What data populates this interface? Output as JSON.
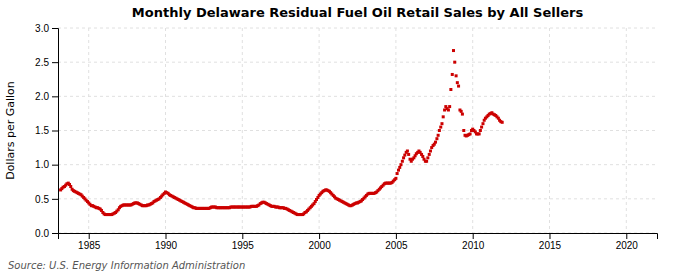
{
  "chart_data": {
    "type": "scatter",
    "title": "Monthly Delaware Residual Fuel Oil Retail Sales by All Sellers",
    "ylabel": "Dollars per Gallon",
    "source": "Source: U.S. Energy Information Administration",
    "color": "#cc0000",
    "marker": "square",
    "grid": true,
    "xlim": [
      1983.0,
      2022.0
    ],
    "ylim": [
      0.0,
      3.0
    ],
    "xticks": [
      1985,
      1990,
      1995,
      2000,
      2005,
      2010,
      2015,
      2020
    ],
    "yticks": [
      {
        "value": 0.0,
        "label": "0.0"
      },
      0.5,
      {
        "value": 1.0,
        "label": "1.0"
      },
      1.5,
      {
        "value": 2.0,
        "label": "2.0"
      },
      2.5,
      {
        "value": 3.0,
        "label": "3.0"
      }
    ],
    "x": [
      1983.17,
      1983.25,
      1983.33,
      1983.42,
      1983.5,
      1983.58,
      1983.67,
      1983.75,
      1983.83,
      1983.92,
      1984.0,
      1984.08,
      1984.17,
      1984.25,
      1984.33,
      1984.42,
      1984.5,
      1984.58,
      1984.67,
      1984.75,
      1984.83,
      1984.92,
      1985.0,
      1985.08,
      1985.17,
      1985.25,
      1985.33,
      1985.42,
      1985.5,
      1985.58,
      1985.67,
      1985.75,
      1985.83,
      1985.92,
      1986.0,
      1986.08,
      1986.17,
      1986.25,
      1986.33,
      1986.42,
      1986.5,
      1986.58,
      1986.67,
      1986.75,
      1986.83,
      1986.92,
      1987.0,
      1987.08,
      1987.17,
      1987.25,
      1987.33,
      1987.42,
      1987.5,
      1987.58,
      1987.67,
      1987.75,
      1987.83,
      1987.92,
      1988.0,
      1988.08,
      1988.17,
      1988.25,
      1988.33,
      1988.42,
      1988.5,
      1988.58,
      1988.67,
      1988.75,
      1988.83,
      1988.92,
      1989.0,
      1989.08,
      1989.17,
      1989.25,
      1989.33,
      1989.42,
      1989.5,
      1989.58,
      1989.67,
      1989.75,
      1989.83,
      1989.92,
      1990.0,
      1990.08,
      1990.17,
      1990.25,
      1990.33,
      1990.42,
      1990.5,
      1990.58,
      1990.67,
      1990.75,
      1990.83,
      1990.92,
      1991.0,
      1991.08,
      1991.17,
      1991.25,
      1991.33,
      1991.42,
      1991.5,
      1991.58,
      1991.67,
      1991.75,
      1991.83,
      1991.92,
      1992.0,
      1992.08,
      1992.17,
      1992.25,
      1992.33,
      1992.42,
      1992.5,
      1992.58,
      1992.67,
      1992.75,
      1992.83,
      1992.92,
      1993.0,
      1993.08,
      1993.17,
      1993.25,
      1993.33,
      1993.42,
      1993.5,
      1993.58,
      1993.67,
      1993.75,
      1993.83,
      1993.92,
      1994.0,
      1994.08,
      1994.17,
      1994.25,
      1994.33,
      1994.42,
      1994.5,
      1994.58,
      1994.67,
      1994.75,
      1994.83,
      1994.92,
      1995.0,
      1995.08,
      1995.17,
      1995.25,
      1995.33,
      1995.42,
      1995.5,
      1995.58,
      1995.67,
      1995.75,
      1995.83,
      1995.92,
      1996.0,
      1996.08,
      1996.17,
      1996.25,
      1996.33,
      1996.42,
      1996.5,
      1996.58,
      1996.67,
      1996.75,
      1996.83,
      1996.92,
      1997.0,
      1997.08,
      1997.17,
      1997.25,
      1997.33,
      1997.42,
      1997.5,
      1997.58,
      1997.67,
      1997.75,
      1997.83,
      1997.92,
      1998.0,
      1998.08,
      1998.17,
      1998.25,
      1998.33,
      1998.42,
      1998.5,
      1998.58,
      1998.67,
      1998.75,
      1998.83,
      1998.92,
      1999.0,
      1999.08,
      1999.17,
      1999.25,
      1999.33,
      1999.42,
      1999.5,
      1999.58,
      1999.67,
      1999.75,
      1999.83,
      1999.92,
      2000.0,
      2000.08,
      2000.17,
      2000.25,
      2000.33,
      2000.42,
      2000.5,
      2000.58,
      2000.67,
      2000.75,
      2000.83,
      2000.92,
      2001.0,
      2001.08,
      2001.17,
      2001.25,
      2001.33,
      2001.42,
      2001.5,
      2001.58,
      2001.67,
      2001.75,
      2001.83,
      2001.92,
      2002.0,
      2002.08,
      2002.17,
      2002.25,
      2002.33,
      2002.42,
      2002.5,
      2002.58,
      2002.67,
      2002.75,
      2002.83,
      2002.92,
      2003.0,
      2003.08,
      2003.17,
      2003.25,
      2003.33,
      2003.42,
      2003.5,
      2003.58,
      2003.67,
      2003.75,
      2003.83,
      2003.92,
      2004.0,
      2004.08,
      2004.17,
      2004.25,
      2004.33,
      2004.42,
      2004.5,
      2004.58,
      2004.67,
      2004.75,
      2004.83,
      2004.92,
      2005.0,
      2005.08,
      2005.17,
      2005.25,
      2005.33,
      2005.42,
      2005.5,
      2005.58,
      2005.67,
      2005.75,
      2005.83,
      2005.92,
      2006.0,
      2006.08,
      2006.17,
      2006.25,
      2006.33,
      2006.42,
      2006.5,
      2006.58,
      2006.67,
      2006.75,
      2006.83,
      2006.92,
      2007.0,
      2007.08,
      2007.17,
      2007.25,
      2007.33,
      2007.42,
      2007.5,
      2007.58,
      2007.67,
      2007.75,
      2007.83,
      2007.92,
      2008.0,
      2008.08,
      2008.17,
      2008.25,
      2008.33,
      2008.42,
      2008.5,
      2008.58,
      2008.67,
      2008.75,
      2008.83,
      2008.92,
      2009.0,
      2009.08,
      2009.17,
      2009.25,
      2009.33,
      2009.42,
      2009.5,
      2009.58,
      2009.67,
      2009.75,
      2009.83,
      2009.92,
      2010.0,
      2010.08,
      2010.17,
      2010.25,
      2010.33,
      2010.42,
      2010.5,
      2010.58,
      2010.67,
      2010.75,
      2010.83,
      2010.92,
      2011.0,
      2011.08,
      2011.17,
      2011.25,
      2011.33,
      2011.42,
      2011.5,
      2011.58,
      2011.67,
      2011.75,
      2011.83,
      2011.92
    ],
    "values": [
      0.63,
      0.65,
      0.67,
      0.68,
      0.7,
      0.72,
      0.73,
      0.71,
      0.68,
      0.64,
      0.62,
      0.61,
      0.6,
      0.59,
      0.58,
      0.57,
      0.56,
      0.54,
      0.52,
      0.5,
      0.48,
      0.46,
      0.44,
      0.42,
      0.4,
      0.4,
      0.39,
      0.38,
      0.37,
      0.37,
      0.36,
      0.35,
      0.33,
      0.3,
      0.28,
      0.27,
      0.27,
      0.27,
      0.27,
      0.27,
      0.27,
      0.28,
      0.29,
      0.3,
      0.32,
      0.34,
      0.37,
      0.39,
      0.4,
      0.41,
      0.41,
      0.41,
      0.41,
      0.41,
      0.41,
      0.41,
      0.42,
      0.43,
      0.44,
      0.44,
      0.44,
      0.43,
      0.42,
      0.41,
      0.4,
      0.4,
      0.4,
      0.4,
      0.41,
      0.41,
      0.42,
      0.43,
      0.44,
      0.46,
      0.47,
      0.48,
      0.49,
      0.5,
      0.52,
      0.54,
      0.56,
      0.58,
      0.6,
      0.59,
      0.58,
      0.56,
      0.55,
      0.54,
      0.53,
      0.52,
      0.51,
      0.5,
      0.49,
      0.48,
      0.47,
      0.46,
      0.45,
      0.44,
      0.43,
      0.42,
      0.41,
      0.4,
      0.39,
      0.38,
      0.37,
      0.37,
      0.36,
      0.36,
      0.36,
      0.36,
      0.36,
      0.36,
      0.36,
      0.36,
      0.36,
      0.36,
      0.36,
      0.37,
      0.38,
      0.38,
      0.38,
      0.38,
      0.37,
      0.37,
      0.37,
      0.37,
      0.37,
      0.37,
      0.37,
      0.37,
      0.37,
      0.37,
      0.37,
      0.38,
      0.38,
      0.38,
      0.38,
      0.38,
      0.38,
      0.38,
      0.38,
      0.38,
      0.38,
      0.38,
      0.38,
      0.38,
      0.38,
      0.38,
      0.38,
      0.39,
      0.39,
      0.39,
      0.39,
      0.39,
      0.4,
      0.41,
      0.43,
      0.44,
      0.45,
      0.45,
      0.44,
      0.43,
      0.42,
      0.41,
      0.4,
      0.39,
      0.39,
      0.39,
      0.38,
      0.38,
      0.38,
      0.37,
      0.37,
      0.37,
      0.37,
      0.36,
      0.36,
      0.35,
      0.34,
      0.33,
      0.32,
      0.31,
      0.3,
      0.29,
      0.28,
      0.27,
      0.27,
      0.27,
      0.27,
      0.27,
      0.28,
      0.3,
      0.31,
      0.33,
      0.35,
      0.37,
      0.39,
      0.41,
      0.43,
      0.46,
      0.49,
      0.52,
      0.55,
      0.57,
      0.59,
      0.61,
      0.62,
      0.63,
      0.63,
      0.62,
      0.61,
      0.59,
      0.57,
      0.55,
      0.53,
      0.51,
      0.5,
      0.49,
      0.48,
      0.47,
      0.46,
      0.45,
      0.44,
      0.43,
      0.42,
      0.41,
      0.4,
      0.4,
      0.41,
      0.42,
      0.43,
      0.44,
      0.44,
      0.45,
      0.46,
      0.47,
      0.49,
      0.51,
      0.53,
      0.55,
      0.57,
      0.58,
      0.58,
      0.58,
      0.58,
      0.58,
      0.59,
      0.6,
      0.62,
      0.64,
      0.66,
      0.68,
      0.7,
      0.72,
      0.73,
      0.73,
      0.73,
      0.73,
      0.73,
      0.74,
      0.76,
      0.78,
      0.8,
      0.87,
      0.92,
      0.96,
      1.0,
      1.05,
      1.1,
      1.14,
      1.18,
      1.2,
      1.15,
      1.08,
      1.05,
      1.08,
      1.1,
      1.13,
      1.16,
      1.18,
      1.2,
      1.18,
      1.15,
      1.12,
      1.08,
      1.05,
      1.05,
      1.1,
      1.15,
      1.2,
      1.25,
      1.28,
      1.3,
      1.33,
      1.38,
      1.43,
      1.5,
      1.55,
      1.6,
      1.7,
      1.8,
      1.85,
      1.82,
      1.8,
      1.85,
      2.1,
      2.32,
      2.67,
      2.5,
      2.3,
      2.2,
      2.15,
      1.8,
      1.78,
      1.74,
      1.5,
      1.43,
      1.42,
      1.43,
      1.44,
      1.45,
      1.5,
      1.52,
      1.5,
      1.48,
      1.45,
      1.45,
      1.45,
      1.5,
      1.55,
      1.6,
      1.65,
      1.68,
      1.7,
      1.72,
      1.74,
      1.75,
      1.76,
      1.74,
      1.73,
      1.72,
      1.7,
      1.68,
      1.65,
      1.63,
      1.62
    ]
  }
}
